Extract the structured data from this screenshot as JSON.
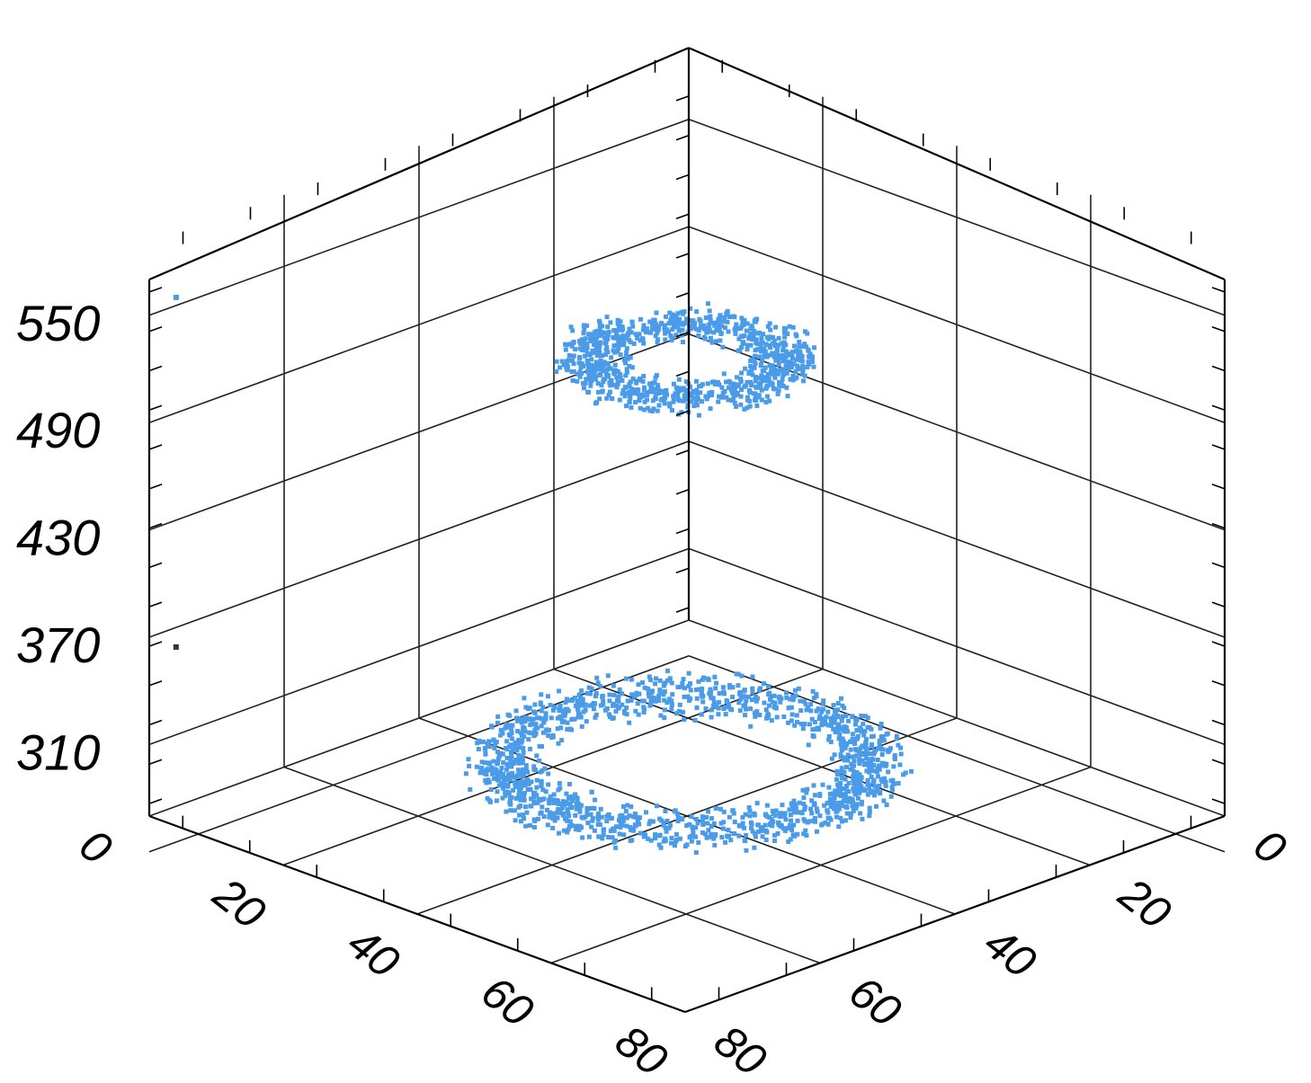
{
  "chart_data": {
    "type": "scatter",
    "title": "",
    "xlabel": "",
    "ylabel": "",
    "zlabel": "",
    "x_ticks": [
      "0",
      "20",
      "40",
      "60",
      "80"
    ],
    "y_ticks": [
      "0",
      "20",
      "40",
      "60",
      "80"
    ],
    "z_ticks": [
      "310",
      "370",
      "430",
      "490",
      "550"
    ],
    "xlim": [
      0,
      80
    ],
    "ylim": [
      0,
      80
    ],
    "zlim": [
      270,
      590
    ],
    "grid": true,
    "point_color": "#4a9be8",
    "outlier_color": "#333333",
    "series": [
      {
        "shape": "ring",
        "center": [
          40,
          40
        ],
        "z": 300,
        "radius_range": [
          34,
          44
        ],
        "z_spread": 18,
        "count": 1500
      },
      {
        "shape": "ring",
        "center": [
          40,
          40
        ],
        "z": 525,
        "radius_range": [
          16,
          26
        ],
        "z_spread": 12,
        "count": 950
      }
    ],
    "outliers": [
      {
        "x": 2,
        "y": 78,
        "z": 560
      },
      {
        "x": 4,
        "y": 80,
        "z": 370
      }
    ]
  }
}
